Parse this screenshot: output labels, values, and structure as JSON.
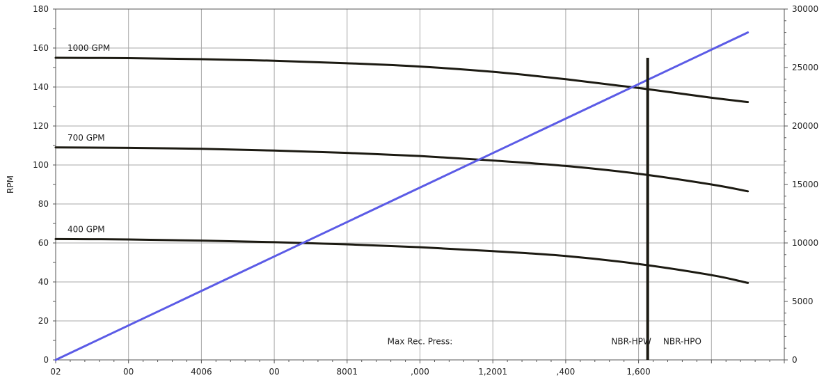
{
  "chart_data": {
    "type": "line",
    "title": "",
    "xlabel": "",
    "ylabel": "RPM",
    "y2label": "",
    "xlim": [
      0,
      2000
    ],
    "ylim": [
      0,
      180
    ],
    "y2lim": [
      0,
      30000
    ],
    "grid": true,
    "x_tick_labels": [
      "02",
      "00",
      "4006",
      "00",
      "8001",
      ",000",
      "1,2001",
      ",400",
      "1,600"
    ],
    "y_ticks": [
      0,
      20,
      40,
      60,
      80,
      100,
      120,
      140,
      160,
      180
    ],
    "y2_ticks": [
      0,
      5000,
      10000,
      15000,
      20000,
      25000,
      30000
    ],
    "series": [
      {
        "name": "1000 GPM",
        "color": "#1c1a12",
        "axis": "left",
        "x": [
          0,
          200,
          400,
          600,
          800,
          1000,
          1200,
          1400,
          1600,
          1800,
          1900
        ],
        "values": [
          155,
          154.8,
          154.3,
          153.5,
          152.2,
          150.5,
          147.8,
          144,
          139.5,
          134.5,
          132.3
        ]
      },
      {
        "name": "700 GPM",
        "color": "#1c1a12",
        "axis": "left",
        "x": [
          0,
          200,
          400,
          600,
          800,
          1000,
          1200,
          1400,
          1600,
          1800,
          1900
        ],
        "values": [
          109,
          108.8,
          108.3,
          107.4,
          106.2,
          104.6,
          102.3,
          99.5,
          95.5,
          90,
          86.5
        ]
      },
      {
        "name": "400 GPM",
        "color": "#1c1a12",
        "axis": "left",
        "x": [
          0,
          200,
          400,
          600,
          800,
          1000,
          1200,
          1400,
          1600,
          1800,
          1900
        ],
        "values": [
          62,
          61.8,
          61.2,
          60.4,
          59.3,
          57.8,
          55.8,
          53.3,
          49.2,
          43.5,
          39.5
        ]
      },
      {
        "name": "",
        "color": "#5b5be6",
        "axis": "right",
        "x": [
          0,
          1900
        ],
        "values": [
          0,
          28000
        ]
      }
    ],
    "vertical_marker": {
      "x": 1625,
      "y_top": 155,
      "color": "#1c1a12"
    },
    "annotations": [
      {
        "text": "Max Rec. Press:",
        "x": 1000,
        "y": 8
      },
      {
        "text": "NBR-HPW",
        "x": 1580,
        "y": 8
      },
      {
        "text": "NBR-HPO",
        "x": 1720,
        "y": 8
      }
    ]
  }
}
